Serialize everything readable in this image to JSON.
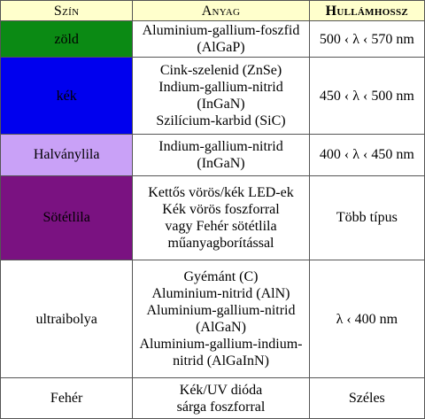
{
  "header": {
    "color": "Szín",
    "material": "Anyag",
    "wavelength": "Hullámhossz"
  },
  "rows": [
    {
      "color_name": "zöld",
      "swatch": "#0b8a14",
      "materials": [
        "Aluminium-gallium-foszfid",
        "(AlGaP)"
      ],
      "wavelength": "500 ‹ λ ‹ 570 nm"
    },
    {
      "color_name": "kék",
      "swatch": "#0000ee",
      "materials": [
        "Cink-szelenid (ZnSe)",
        "Indium-gallium-nitrid",
        "(InGaN)",
        "Szilícium-karbid (SiC)"
      ],
      "wavelength": "450 ‹ λ ‹ 500 nm"
    },
    {
      "color_name": "Halványlila",
      "swatch": "#c9a1f7",
      "materials": [
        "Indium-gallium-nitrid",
        "(InGaN)"
      ],
      "wavelength": "400 ‹ λ ‹ 450 nm"
    },
    {
      "color_name": "Sötétlila",
      "swatch": "#7a1281",
      "materials": [
        "Kettős vörös/kék LED-ek",
        "Kék vörös foszforral",
        "vagy Fehér sötétlila",
        "műanyagborítással"
      ],
      "wavelength": "Több típus"
    },
    {
      "color_name": "ultraibolya",
      "swatch": "#ffffff",
      "materials": [
        "Gyémánt (C)",
        "Aluminium-nitrid (AlN)",
        "Aluminium-gallium-nitrid",
        "(AlGaN)",
        "Aluminium-gallium-indium-",
        "nitrid (AlGaInN)"
      ],
      "wavelength": "λ ‹ 400 nm"
    },
    {
      "color_name": "Fehér",
      "swatch": "#ffffff",
      "materials": [
        "Kék/UV dióda",
        "sárga foszforral"
      ],
      "wavelength": "Széles"
    }
  ]
}
